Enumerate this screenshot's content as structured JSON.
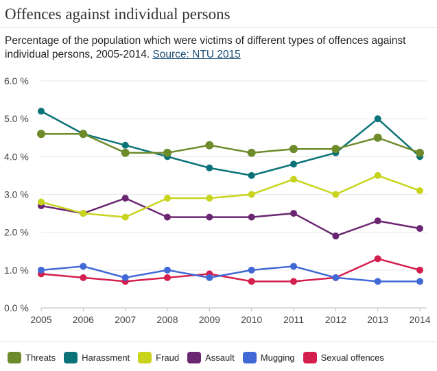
{
  "header": {
    "title": "Offences against individual persons",
    "subtitle_text": "Percentage of the population which were victims of different types of offences against individual persons, 2005-2014.",
    "source_link": "Source: NTU 2015"
  },
  "chart_data": {
    "type": "line",
    "title": "Offences against individual persons",
    "xlabel": "",
    "ylabel": "",
    "categories": [
      "2005",
      "2006",
      "2007",
      "2008",
      "2009",
      "2010",
      "2011",
      "2012",
      "2013",
      "2014"
    ],
    "ylim": [
      0,
      6
    ],
    "yticks": [
      "0.0 %",
      "1.0 %",
      "2.0 %",
      "3.0 %",
      "4.0 %",
      "5.0 %",
      "6.0 %"
    ],
    "grid": "horizontal",
    "legend_position": "bottom",
    "series": [
      {
        "name": "Threats",
        "color": "#6e8b2b",
        "values": [
          4.6,
          4.6,
          4.1,
          4.1,
          4.3,
          4.1,
          4.2,
          4.2,
          4.5,
          4.1
        ]
      },
      {
        "name": "Harassment",
        "color": "#0b7378",
        "values": [
          5.2,
          4.6,
          4.3,
          4.0,
          3.7,
          3.5,
          3.8,
          4.1,
          5.0,
          4.0
        ]
      },
      {
        "name": "Fraud",
        "color": "#c8d41c",
        "values": [
          2.8,
          2.5,
          2.4,
          2.9,
          2.9,
          3.0,
          3.4,
          3.0,
          3.5,
          3.1
        ]
      },
      {
        "name": "Assault",
        "color": "#6b2672",
        "values": [
          2.7,
          2.5,
          2.9,
          2.4,
          2.4,
          2.4,
          2.5,
          1.9,
          2.3,
          2.1
        ]
      },
      {
        "name": "Mugging",
        "color": "#4169d6",
        "values": [
          1.0,
          1.1,
          0.8,
          1.0,
          0.8,
          1.0,
          1.1,
          0.8,
          0.7,
          0.7
        ]
      },
      {
        "name": "Sexual offences",
        "color": "#d41e4d",
        "values": [
          0.9,
          0.8,
          0.7,
          0.8,
          0.9,
          0.7,
          0.7,
          0.8,
          1.3,
          1.0
        ]
      }
    ]
  }
}
